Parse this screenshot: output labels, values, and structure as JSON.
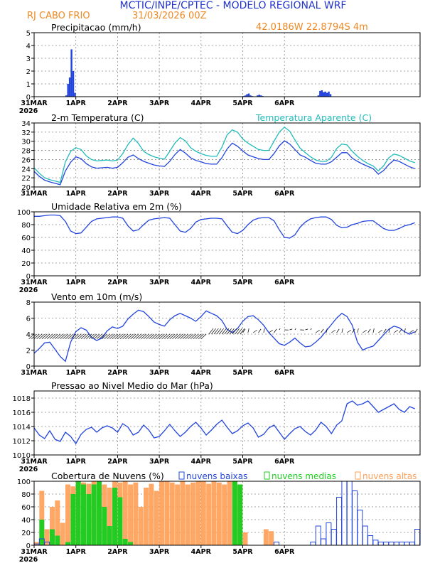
{
  "header": {
    "line1": "MCTIC/INPE/CPTEC - MODELO REGIONAL WRF",
    "station": "RJ CABO FRIO",
    "run": "31/03/2026 00Z",
    "coords": "42.0186W 22.8794S 4m"
  },
  "colors": {
    "blue": "#2244dd",
    "cyan": "#22bbbb",
    "orange": "#ff9f55",
    "green": "#22cc22",
    "header_blue": "#2233cc",
    "header_orange": "#ee8822"
  },
  "x_axis": {
    "ticks": [
      "31MAR",
      "1APR",
      "2APR",
      "3APR",
      "4APR",
      "5APR",
      "6APR"
    ],
    "year": "2026"
  },
  "chart_data": [
    {
      "id": "precip",
      "type": "bar",
      "title": "Precipitacao (mm/h)",
      "ylim": [
        0,
        5
      ],
      "yticks": [
        0,
        1,
        2,
        3,
        4,
        5
      ],
      "x_hours": [
        18,
        19,
        20,
        21,
        22,
        23,
        120,
        121,
        122,
        123,
        124,
        125,
        128,
        129,
        130,
        131,
        163,
        164,
        165,
        166,
        167,
        168,
        169,
        170
      ],
      "values": [
        0.1,
        1.0,
        1.5,
        3.7,
        2.0,
        0.3,
        0.05,
        0.1,
        0.2,
        0.25,
        0.1,
        0.05,
        0.1,
        0.15,
        0.1,
        0.05,
        0.1,
        0.45,
        0.5,
        0.35,
        0.4,
        0.3,
        0.4,
        0.2
      ]
    },
    {
      "id": "temp",
      "type": "line",
      "title": "2-m Temperatura (C)",
      "title2": "Temperatura Aparente (C)",
      "ylim": [
        20,
        34
      ],
      "yticks": [
        20,
        22,
        24,
        26,
        28,
        30,
        32,
        34
      ],
      "x_step_hours": 3,
      "series": [
        {
          "name": "2-m Temperatura (C)",
          "color": "blue",
          "values": [
            23.4,
            22.3,
            21.5,
            21.1,
            20.8,
            20.5,
            23.5,
            25.4,
            26.6,
            26.2,
            25.1,
            24.4,
            24.1,
            24.2,
            24.3,
            24.1,
            24.3,
            25.3,
            26.5,
            27.0,
            26.2,
            25.6,
            25.2,
            24.8,
            24.6,
            24.5,
            25.6,
            27.1,
            28.2,
            27.4,
            26.4,
            25.8,
            25.5,
            25.1,
            25.0,
            25.0,
            26.4,
            28.3,
            29.6,
            28.9,
            27.9,
            27.0,
            26.6,
            26.2,
            26.0,
            26.0,
            27.3,
            29.0,
            30.1,
            29.4,
            28.2,
            27.0,
            26.5,
            25.8,
            25.2,
            25.0,
            25.0,
            25.5,
            26.5,
            27.5,
            27.5,
            26.3,
            25.6,
            25.0,
            24.5,
            24.0,
            22.8,
            23.6,
            24.9,
            25.9,
            25.6,
            25.0,
            24.4,
            24.0
          ]
        },
        {
          "name": "Temperatura Aparente (C)",
          "color": "cyan",
          "values": [
            24.2,
            23.0,
            22.0,
            21.6,
            21.3,
            21.0,
            25.5,
            27.8,
            28.6,
            28.2,
            26.8,
            26.0,
            25.7,
            25.8,
            25.9,
            25.7,
            25.9,
            27.3,
            29.3,
            30.7,
            29.5,
            27.8,
            27.1,
            26.6,
            26.3,
            26.1,
            27.8,
            29.6,
            30.8,
            30.1,
            28.6,
            27.8,
            27.3,
            26.9,
            26.7,
            26.7,
            28.7,
            31.4,
            32.5,
            32.0,
            30.5,
            29.6,
            28.9,
            28.2,
            28.0,
            28.0,
            30.0,
            32.0,
            33.1,
            32.2,
            30.3,
            28.5,
            27.5,
            26.6,
            25.9,
            25.6,
            25.6,
            26.5,
            28.4,
            29.4,
            29.2,
            27.8,
            26.7,
            25.8,
            25.1,
            24.6,
            23.5,
            24.6,
            26.4,
            27.2,
            26.9,
            26.3,
            25.7,
            25.3
          ]
        }
      ]
    },
    {
      "id": "rh",
      "type": "line",
      "title": "Umidade Relativa em 2m (%)",
      "ylim": [
        0,
        100
      ],
      "yticks": [
        0,
        20,
        40,
        60,
        80,
        100
      ],
      "x_step_hours": 3,
      "series": [
        {
          "name": "Umidade Relativa",
          "color": "blue",
          "values": [
            93,
            93,
            94,
            95,
            95,
            94,
            85,
            70,
            66,
            67,
            76,
            85,
            89,
            90,
            91,
            92,
            92,
            90,
            78,
            70,
            72,
            80,
            87,
            89,
            90,
            91,
            90,
            80,
            70,
            68,
            74,
            84,
            88,
            89,
            90,
            90,
            89,
            78,
            68,
            66,
            71,
            80,
            87,
            90,
            91,
            91,
            86,
            72,
            60,
            59,
            64,
            76,
            84,
            89,
            91,
            92,
            92,
            88,
            79,
            75,
            76,
            80,
            82,
            85,
            86,
            86,
            80,
            74,
            71,
            71,
            74,
            78,
            80,
            83
          ]
        }
      ]
    },
    {
      "id": "wind",
      "type": "line",
      "title": "Vento em 10m (m/s)",
      "ylim": [
        0,
        8
      ],
      "yticks": [
        0,
        2,
        4,
        6,
        8
      ],
      "x_step_hours": 3,
      "series": [
        {
          "name": "Vento 10m",
          "color": "blue",
          "values": [
            1.6,
            2.2,
            2.9,
            3.0,
            2.1,
            1.2,
            0.6,
            3.0,
            4.3,
            4.8,
            4.5,
            3.6,
            3.2,
            3.5,
            4.4,
            4.9,
            4.7,
            5.0,
            5.9,
            6.5,
            7.0,
            6.8,
            6.2,
            5.5,
            5.2,
            5.0,
            5.8,
            6.3,
            6.6,
            6.3,
            6.0,
            5.6,
            6.2,
            6.9,
            6.6,
            6.3,
            5.7,
            4.6,
            4.2,
            4.7,
            5.6,
            6.2,
            6.3,
            5.8,
            5.1,
            4.2,
            3.5,
            2.8,
            2.6,
            3.0,
            3.5,
            2.9,
            2.4,
            2.5,
            3.0,
            3.6,
            4.4,
            5.2,
            6.0,
            6.6,
            6.2,
            5.1,
            3.0,
            2.0,
            2.3,
            2.5,
            3.2,
            3.9,
            4.6,
            5.0,
            4.8,
            4.3,
            4.0,
            4.3
          ]
        }
      ]
    },
    {
      "id": "pres",
      "type": "line",
      "title": "Pressao ao Nivel Medio do Mar (hPa)",
      "ylim": [
        1010,
        1019
      ],
      "yticks": [
        1010,
        1012,
        1014,
        1016,
        1018
      ],
      "x_step_hours": 3,
      "series": [
        {
          "name": "Pressao",
          "color": "blue",
          "values": [
            1013.8,
            1012.8,
            1012.3,
            1013.4,
            1012.2,
            1011.9,
            1013.2,
            1012.6,
            1011.6,
            1012.9,
            1013.6,
            1013.9,
            1013.2,
            1013.8,
            1014.1,
            1013.8,
            1013.2,
            1014.4,
            1013.9,
            1012.8,
            1013.2,
            1014.2,
            1013.5,
            1012.4,
            1012.6,
            1013.4,
            1014.3,
            1013.4,
            1012.6,
            1013.2,
            1014.0,
            1014.6,
            1013.8,
            1012.8,
            1013.5,
            1014.3,
            1014.9,
            1013.9,
            1013.0,
            1013.4,
            1014.1,
            1014.5,
            1013.8,
            1012.5,
            1012.9,
            1013.8,
            1014.2,
            1013.2,
            1012.2,
            1013.0,
            1013.7,
            1014.0,
            1013.3,
            1012.8,
            1013.5,
            1014.6,
            1014.0,
            1013.0,
            1014.2,
            1014.8,
            1017.2,
            1017.6,
            1017.0,
            1017.2,
            1017.6,
            1016.8,
            1016.0,
            1016.4,
            1016.8,
            1017.2,
            1016.4,
            1016.0,
            1016.8,
            1016.5
          ]
        }
      ]
    },
    {
      "id": "clouds",
      "type": "bar",
      "title": "Cobertura de Nuvens (%)",
      "legend": [
        "nuvens baixas",
        "nuvens medias",
        "nuvens altas"
      ],
      "ylim": [
        0,
        100
      ],
      "yticks": [
        0,
        20,
        40,
        60,
        80,
        100
      ],
      "x_step_hours": 3,
      "series": [
        {
          "name": "nuvens altas",
          "color": "orange",
          "values": [
            5,
            85,
            25,
            60,
            70,
            35,
            95,
            92,
            100,
            98,
            96,
            100,
            100,
            95,
            90,
            100,
            98,
            100,
            95,
            98,
            60,
            90,
            96,
            85,
            100,
            100,
            98,
            95,
            100,
            95,
            98,
            100,
            100,
            96,
            100,
            98,
            95,
            100,
            100,
            95,
            20,
            0,
            0,
            0,
            25,
            22,
            0,
            0,
            0,
            0,
            0,
            0,
            0,
            0,
            0,
            0,
            0,
            0,
            0,
            0,
            0,
            0,
            0,
            0,
            0,
            0,
            0,
            0,
            0,
            0,
            0,
            0,
            0,
            0
          ]
        },
        {
          "name": "nuvens medias",
          "color": "green",
          "values": [
            0,
            40,
            0,
            25,
            15,
            0,
            5,
            80,
            100,
            95,
            80,
            95,
            100,
            60,
            30,
            90,
            75,
            10,
            5,
            0,
            0,
            0,
            0,
            0,
            0,
            0,
            0,
            0,
            0,
            0,
            0,
            0,
            0,
            0,
            0,
            0,
            0,
            0,
            100,
            95,
            0,
            0,
            0,
            0,
            0,
            0,
            0,
            0,
            0,
            0,
            0,
            0,
            0,
            0,
            0,
            0,
            0,
            0,
            0,
            0,
            0,
            0,
            0,
            0,
            0,
            0,
            0,
            0,
            0,
            0,
            0,
            0,
            0,
            0
          ]
        },
        {
          "name": "nuvens baixas",
          "color": "blue",
          "values": [
            2,
            10,
            5,
            0,
            0,
            0,
            0,
            0,
            0,
            0,
            0,
            0,
            0,
            0,
            0,
            0,
            0,
            0,
            0,
            0,
            0,
            0,
            0,
            0,
            0,
            0,
            0,
            0,
            0,
            0,
            0,
            0,
            0,
            0,
            0,
            0,
            0,
            0,
            0,
            0,
            0,
            0,
            0,
            0,
            0,
            0,
            5,
            0,
            0,
            0,
            0,
            0,
            0,
            5,
            30,
            10,
            35,
            25,
            75,
            100,
            100,
            85,
            55,
            30,
            15,
            8,
            5,
            5,
            5,
            5,
            5,
            5,
            5,
            25
          ]
        }
      ]
    }
  ]
}
